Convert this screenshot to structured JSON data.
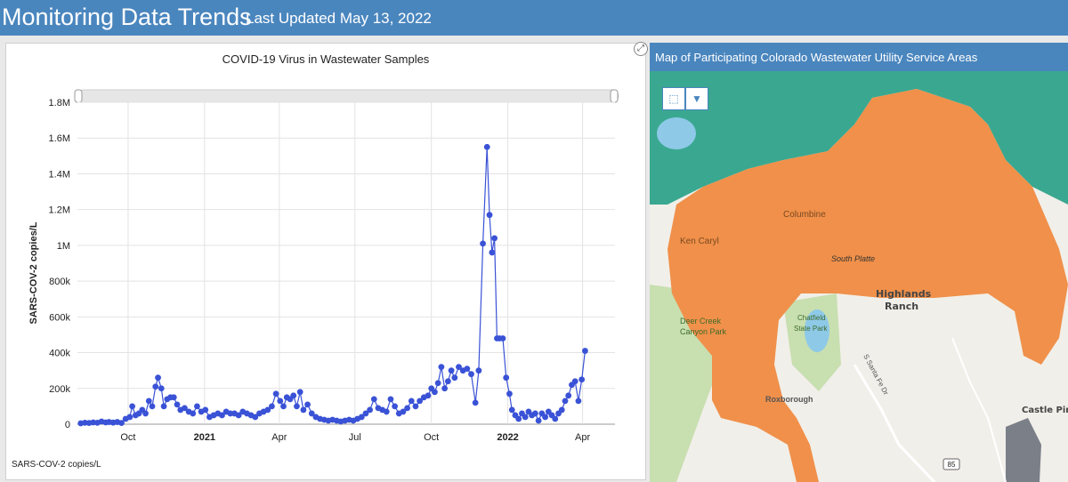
{
  "header": {
    "title": "Monitoring Data Trends",
    "updated": "Last Updated May 13, 2022"
  },
  "chart_data": {
    "type": "line",
    "title": "COVID-19 Virus in Wastewater Samples",
    "ylabel": "SARS-COV-2 copies/L",
    "ylim": [
      0,
      1800000
    ],
    "yticks": [
      {
        "v": 0,
        "label": "0"
      },
      {
        "v": 200000,
        "label": "200k"
      },
      {
        "v": 400000,
        "label": "400k"
      },
      {
        "v": 600000,
        "label": "600k"
      },
      {
        "v": 800000,
        "label": "800k"
      },
      {
        "v": 1000000,
        "label": "1M"
      },
      {
        "v": 1200000,
        "label": "1.2M"
      },
      {
        "v": 1400000,
        "label": "1.4M"
      },
      {
        "v": 1600000,
        "label": "1.6M"
      },
      {
        "v": 1800000,
        "label": "1.8M"
      }
    ],
    "xlim": [
      "2020-08-01",
      "2022-05-10"
    ],
    "xticks": [
      {
        "date": "2020-10-01",
        "label": "Oct",
        "bold": false
      },
      {
        "date": "2021-01-01",
        "label": "2021",
        "bold": true
      },
      {
        "date": "2021-04-01",
        "label": "Apr",
        "bold": false
      },
      {
        "date": "2021-07-01",
        "label": "Jul",
        "bold": false
      },
      {
        "date": "2021-10-01",
        "label": "Oct",
        "bold": false
      },
      {
        "date": "2022-01-01",
        "label": "2022",
        "bold": true
      },
      {
        "date": "2022-04-01",
        "label": "Apr",
        "bold": false
      }
    ],
    "series": [
      {
        "color": "#3a52d6",
        "points": [
          [
            "2020-08-05",
            5000
          ],
          [
            "2020-08-10",
            8000
          ],
          [
            "2020-08-15",
            7000
          ],
          [
            "2020-08-20",
            10000
          ],
          [
            "2020-08-25",
            8000
          ],
          [
            "2020-08-30",
            15000
          ],
          [
            "2020-09-04",
            10000
          ],
          [
            "2020-09-08",
            12000
          ],
          [
            "2020-09-13",
            9000
          ],
          [
            "2020-09-18",
            12000
          ],
          [
            "2020-09-23",
            7000
          ],
          [
            "2020-09-28",
            30000
          ],
          [
            "2020-10-03",
            40000
          ],
          [
            "2020-10-06",
            100000
          ],
          [
            "2020-10-10",
            50000
          ],
          [
            "2020-10-14",
            60000
          ],
          [
            "2020-10-18",
            80000
          ],
          [
            "2020-10-22",
            60000
          ],
          [
            "2020-10-26",
            130000
          ],
          [
            "2020-10-30",
            100000
          ],
          [
            "2020-11-03",
            210000
          ],
          [
            "2020-11-06",
            260000
          ],
          [
            "2020-11-10",
            200000
          ],
          [
            "2020-11-13",
            100000
          ],
          [
            "2020-11-17",
            140000
          ],
          [
            "2020-11-21",
            150000
          ],
          [
            "2020-11-25",
            150000
          ],
          [
            "2020-11-29",
            110000
          ],
          [
            "2020-12-03",
            80000
          ],
          [
            "2020-12-08",
            90000
          ],
          [
            "2020-12-13",
            70000
          ],
          [
            "2020-12-18",
            60000
          ],
          [
            "2020-12-23",
            100000
          ],
          [
            "2020-12-28",
            70000
          ],
          [
            "2021-01-02",
            80000
          ],
          [
            "2021-01-07",
            40000
          ],
          [
            "2021-01-12",
            50000
          ],
          [
            "2021-01-17",
            60000
          ],
          [
            "2021-01-22",
            50000
          ],
          [
            "2021-01-27",
            70000
          ],
          [
            "2021-02-01",
            60000
          ],
          [
            "2021-02-06",
            60000
          ],
          [
            "2021-02-11",
            50000
          ],
          [
            "2021-02-16",
            70000
          ],
          [
            "2021-02-21",
            60000
          ],
          [
            "2021-02-26",
            50000
          ],
          [
            "2021-03-03",
            40000
          ],
          [
            "2021-03-08",
            60000
          ],
          [
            "2021-03-13",
            70000
          ],
          [
            "2021-03-18",
            80000
          ],
          [
            "2021-03-23",
            100000
          ],
          [
            "2021-03-28",
            170000
          ],
          [
            "2021-04-02",
            130000
          ],
          [
            "2021-04-06",
            100000
          ],
          [
            "2021-04-10",
            150000
          ],
          [
            "2021-04-14",
            140000
          ],
          [
            "2021-04-18",
            160000
          ],
          [
            "2021-04-22",
            100000
          ],
          [
            "2021-04-26",
            180000
          ],
          [
            "2021-04-30",
            80000
          ],
          [
            "2021-05-05",
            110000
          ],
          [
            "2021-05-10",
            60000
          ],
          [
            "2021-05-15",
            40000
          ],
          [
            "2021-05-20",
            30000
          ],
          [
            "2021-05-25",
            25000
          ],
          [
            "2021-05-30",
            20000
          ],
          [
            "2021-06-04",
            25000
          ],
          [
            "2021-06-09",
            20000
          ],
          [
            "2021-06-14",
            15000
          ],
          [
            "2021-06-19",
            20000
          ],
          [
            "2021-06-24",
            25000
          ],
          [
            "2021-06-29",
            20000
          ],
          [
            "2021-07-04",
            30000
          ],
          [
            "2021-07-09",
            40000
          ],
          [
            "2021-07-14",
            60000
          ],
          [
            "2021-07-19",
            80000
          ],
          [
            "2021-07-24",
            140000
          ],
          [
            "2021-07-29",
            90000
          ],
          [
            "2021-08-03",
            80000
          ],
          [
            "2021-08-08",
            70000
          ],
          [
            "2021-08-13",
            140000
          ],
          [
            "2021-08-18",
            100000
          ],
          [
            "2021-08-23",
            60000
          ],
          [
            "2021-08-28",
            70000
          ],
          [
            "2021-09-02",
            90000
          ],
          [
            "2021-09-07",
            130000
          ],
          [
            "2021-09-12",
            100000
          ],
          [
            "2021-09-17",
            130000
          ],
          [
            "2021-09-22",
            150000
          ],
          [
            "2021-09-27",
            160000
          ],
          [
            "2021-10-01",
            200000
          ],
          [
            "2021-10-05",
            180000
          ],
          [
            "2021-10-09",
            230000
          ],
          [
            "2021-10-13",
            320000
          ],
          [
            "2021-10-17",
            200000
          ],
          [
            "2021-10-21",
            240000
          ],
          [
            "2021-10-25",
            300000
          ],
          [
            "2021-10-29",
            260000
          ],
          [
            "2021-11-03",
            320000
          ],
          [
            "2021-11-08",
            300000
          ],
          [
            "2021-11-13",
            310000
          ],
          [
            "2021-11-18",
            280000
          ],
          [
            "2021-11-23",
            120000
          ],
          [
            "2021-11-27",
            300000
          ],
          [
            "2021-12-02",
            1010000
          ],
          [
            "2021-12-07",
            1550000
          ],
          [
            "2021-12-10",
            1170000
          ],
          [
            "2021-12-13",
            960000
          ],
          [
            "2021-12-16",
            1040000
          ],
          [
            "2021-12-19",
            480000
          ],
          [
            "2021-12-22",
            480000
          ],
          [
            "2021-12-26",
            480000
          ],
          [
            "2021-12-30",
            260000
          ],
          [
            "2022-01-03",
            170000
          ],
          [
            "2022-01-06",
            80000
          ],
          [
            "2022-01-10",
            50000
          ],
          [
            "2022-01-14",
            30000
          ],
          [
            "2022-01-18",
            60000
          ],
          [
            "2022-01-22",
            40000
          ],
          [
            "2022-01-26",
            70000
          ],
          [
            "2022-01-30",
            50000
          ],
          [
            "2022-02-03",
            60000
          ],
          [
            "2022-02-07",
            20000
          ],
          [
            "2022-02-11",
            60000
          ],
          [
            "2022-02-15",
            40000
          ],
          [
            "2022-02-19",
            70000
          ],
          [
            "2022-02-23",
            50000
          ],
          [
            "2022-02-27",
            30000
          ],
          [
            "2022-03-03",
            60000
          ],
          [
            "2022-03-07",
            80000
          ],
          [
            "2022-03-11",
            130000
          ],
          [
            "2022-03-15",
            160000
          ],
          [
            "2022-03-19",
            220000
          ],
          [
            "2022-03-23",
            240000
          ],
          [
            "2022-03-27",
            130000
          ],
          [
            "2022-03-31",
            250000
          ],
          [
            "2022-04-04",
            410000
          ]
        ]
      }
    ]
  },
  "footnote": "SARS-COV-2 copies/L",
  "map": {
    "title": "Map of Participating Colorado Wastewater Utility Service Areas",
    "labels": {
      "ken_caryl": "Ken Caryl",
      "columbine": "Columbine",
      "south_platte": "South Platte",
      "highlands": "Highlands",
      "ranch": "Ranch",
      "deer_creek": "Deer Creek",
      "canyon_park": "Canyon Park",
      "chatfield": "Chatfield",
      "state_park": "State Park",
      "santa_fe": "S Santa Fe Dr",
      "castle_pines": "Castle Pin",
      "roxborough": "Roxborough",
      "route_85": "85"
    },
    "colors": {
      "service_area": "#f0904a",
      "north_area": "#3aa890",
      "park": "#c8dfb0",
      "water": "#8ec9e8",
      "gray_area": "#7a7f88"
    }
  }
}
